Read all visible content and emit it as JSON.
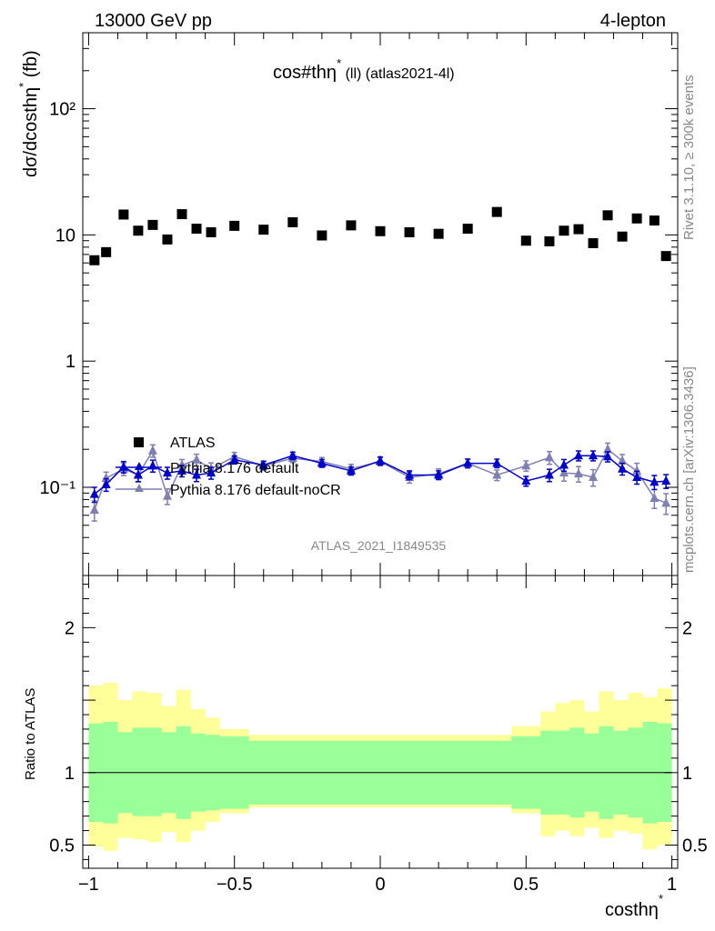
{
  "header": {
    "left": "13000 GeV pp",
    "right": "4-lepton"
  },
  "side": {
    "rivet": "Rivet 3.1.10, ≥ 300k events",
    "mcplots": "mcplots.cern.ch [arXiv:1306.3436]"
  },
  "watermark": "ATLAS_2021_I1849535",
  "colors": {
    "atlas": "#000000",
    "default": "#0000cc",
    "noCR": "#7f7fb2",
    "band_inner": "#99ff99",
    "band_outer": "#ffff99"
  },
  "chart_data": [
    {
      "type": "scatter",
      "title": "cos#thη* (ll) (atlas2021-4l)",
      "title_main": "cos#thη",
      "title_star": "*",
      "title_rest": " (ll) (atlas2021-4l)",
      "ylabel": "dσ/dcosthη",
      "ylabel_star": "*",
      "ylabel_unit": " (fb)",
      "yscale": "log",
      "ylim": [
        0.02,
        400
      ],
      "xlim": [
        -1.02,
        1.02
      ],
      "ytick_labels": [
        "10⁻¹",
        "1",
        "10",
        "10²"
      ],
      "legend": {
        "placement": "lower-left",
        "entries": [
          "ATLAS",
          "Pythia 8.176 default",
          "Pythia 8.176 default-noCR"
        ]
      },
      "x": [
        -0.98,
        -0.94,
        -0.88,
        -0.83,
        -0.78,
        -0.73,
        -0.68,
        -0.63,
        -0.58,
        -0.5,
        -0.4,
        -0.3,
        -0.2,
        -0.1,
        0.0,
        0.1,
        0.2,
        0.3,
        0.4,
        0.5,
        0.58,
        0.63,
        0.68,
        0.73,
        0.78,
        0.83,
        0.88,
        0.94,
        0.98
      ],
      "series": [
        {
          "name": "ATLAS",
          "values": [
            6.3,
            7.3,
            14.5,
            10.8,
            12.0,
            9.2,
            14.6,
            11.2,
            10.5,
            11.8,
            11.0,
            12.6,
            9.9,
            11.9,
            10.7,
            10.5,
            10.2,
            11.2,
            15.2,
            9.0,
            8.9,
            10.8,
            11.1,
            8.6,
            14.3,
            9.7,
            13.5,
            13.0,
            6.8
          ]
        },
        {
          "name": "Pythia 8.176 default",
          "values": [
            0.088,
            0.105,
            0.145,
            0.125,
            0.148,
            0.13,
            0.135,
            0.125,
            0.13,
            0.165,
            0.15,
            0.178,
            0.155,
            0.135,
            0.162,
            0.125,
            0.125,
            0.155,
            0.155,
            0.112,
            0.125,
            0.15,
            0.178,
            0.178,
            0.175,
            0.14,
            0.12,
            0.11,
            0.112
          ],
          "errors": [
            0.012,
            0.012,
            0.015,
            0.014,
            0.016,
            0.014,
            0.014,
            0.014,
            0.014,
            0.012,
            0.011,
            0.012,
            0.011,
            0.01,
            0.012,
            0.01,
            0.01,
            0.012,
            0.012,
            0.01,
            0.014,
            0.016,
            0.016,
            0.016,
            0.016,
            0.015,
            0.014,
            0.014,
            0.014
          ]
        },
        {
          "name": "Pythia 8.176 default-noCR",
          "values": [
            0.066,
            0.118,
            0.14,
            0.125,
            0.195,
            0.085,
            0.15,
            0.165,
            0.14,
            0.175,
            0.148,
            0.17,
            0.16,
            0.14,
            0.16,
            0.12,
            0.128,
            0.155,
            0.125,
            0.148,
            0.172,
            0.13,
            0.128,
            0.12,
            0.2,
            0.162,
            0.135,
            0.082,
            0.075
          ],
          "errors": [
            0.012,
            0.014,
            0.016,
            0.015,
            0.022,
            0.012,
            0.016,
            0.018,
            0.016,
            0.014,
            0.012,
            0.013,
            0.012,
            0.012,
            0.012,
            0.012,
            0.012,
            0.013,
            0.012,
            0.014,
            0.02,
            0.018,
            0.018,
            0.018,
            0.024,
            0.02,
            0.02,
            0.014,
            0.014
          ]
        }
      ]
    },
    {
      "type": "area",
      "ylabel": "Ratio to ATLAS",
      "xlabel": "costhη",
      "xlabel_star": "*",
      "ylim": [
        0.34,
        2.36
      ],
      "xlim": [
        -1.02,
        1.02
      ],
      "yticks": [
        0.5,
        1,
        2
      ],
      "ytick_labels": [
        "0.5",
        "1",
        "2"
      ],
      "xticks": [
        -1,
        -0.5,
        0,
        0.5,
        1
      ],
      "xtick_labels": [
        "−1",
        "−0.5",
        "0",
        "0.5",
        "1"
      ],
      "bin_edges": [
        -1.0,
        -0.95,
        -0.9,
        -0.85,
        -0.8,
        -0.75,
        -0.7,
        -0.65,
        -0.6,
        -0.55,
        -0.45,
        -0.35,
        -0.25,
        -0.15,
        -0.05,
        0.05,
        0.15,
        0.25,
        0.35,
        0.45,
        0.55,
        0.6,
        0.65,
        0.7,
        0.75,
        0.8,
        0.85,
        0.9,
        0.95,
        1.0
      ],
      "reference": 1,
      "series": [
        {
          "name": "inner",
          "upper": [
            1.34,
            1.35,
            1.28,
            1.31,
            1.31,
            1.28,
            1.32,
            1.27,
            1.26,
            1.25,
            1.22,
            1.22,
            1.22,
            1.22,
            1.22,
            1.22,
            1.22,
            1.22,
            1.22,
            1.25,
            1.29,
            1.29,
            1.31,
            1.27,
            1.32,
            1.29,
            1.31,
            1.35,
            1.34
          ],
          "lower": [
            0.66,
            0.65,
            0.72,
            0.7,
            0.7,
            0.72,
            0.68,
            0.73,
            0.74,
            0.75,
            0.78,
            0.78,
            0.78,
            0.78,
            0.78,
            0.78,
            0.78,
            0.78,
            0.78,
            0.75,
            0.71,
            0.71,
            0.69,
            0.73,
            0.68,
            0.71,
            0.69,
            0.65,
            0.66
          ]
        },
        {
          "name": "outer",
          "upper": [
            1.6,
            1.62,
            1.5,
            1.56,
            1.55,
            1.46,
            1.57,
            1.44,
            1.38,
            1.3,
            1.26,
            1.26,
            1.26,
            1.26,
            1.26,
            1.26,
            1.26,
            1.26,
            1.26,
            1.32,
            1.42,
            1.48,
            1.5,
            1.42,
            1.56,
            1.5,
            1.55,
            1.52,
            1.58
          ],
          "lower": [
            0.49,
            0.46,
            0.55,
            0.54,
            0.52,
            0.59,
            0.52,
            0.6,
            0.66,
            0.72,
            0.76,
            0.76,
            0.76,
            0.76,
            0.76,
            0.76,
            0.76,
            0.76,
            0.76,
            0.72,
            0.56,
            0.6,
            0.56,
            0.62,
            0.55,
            0.6,
            0.58,
            0.47,
            0.5
          ]
        }
      ]
    }
  ]
}
